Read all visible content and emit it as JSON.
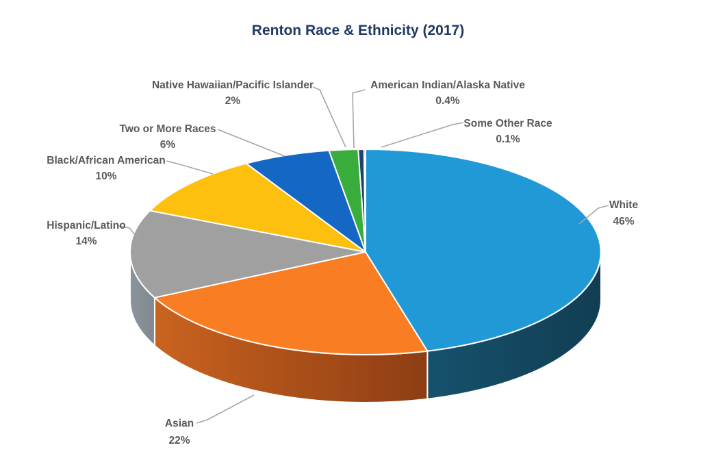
{
  "title": {
    "text": "Renton Race & Ethnicity (2017)",
    "color": "#1F3864"
  },
  "chart_data": {
    "type": "pie",
    "style": "3d-pie",
    "title": "Renton Race & Ethnicity (2017)",
    "unit": "percent",
    "legend": "none",
    "label_style": "category name + percentage with leader lines",
    "label_color": "#595959",
    "leader_color": "#A6A6A6",
    "background": "#FFFFFF",
    "slices": [
      {
        "label": "White",
        "value": 46,
        "display": "46%",
        "color": "#2199D7",
        "side_colors": [
          "#16516C",
          "#113E53"
        ]
      },
      {
        "label": "Asian",
        "value": 22,
        "display": "22%",
        "color": "#F97E23",
        "side_colors": [
          "#C9631F",
          "#8E3D14"
        ]
      },
      {
        "label": "Hispanic/Latino",
        "value": 14,
        "display": "14%",
        "color": "#A0A0A0",
        "side_colors": [
          "#8C949B",
          "#80888F"
        ]
      },
      {
        "label": "Black/African American",
        "value": 10,
        "display": "10%",
        "color": "#FDC00F",
        "side_colors": [
          "#BC8E06",
          "#A87E05"
        ]
      },
      {
        "label": "Two or More Races",
        "value": 6,
        "display": "6%",
        "color": "#1467C3",
        "side_colors": [
          "#0E4A8E",
          "#0C4076"
        ]
      },
      {
        "label": "Native Hawaiian/Pacific Islander",
        "value": 2,
        "display": "2%",
        "color": "#38AD3C",
        "side_colors": [
          "#27792A",
          "#216624"
        ]
      },
      {
        "label": "American Indian/Alaska Native",
        "value": 0.4,
        "display": "0.4%",
        "color": "#20406E",
        "side_colors": [
          "#162C4D",
          "#122442"
        ]
      },
      {
        "label": "Some Other Race",
        "value": 0.1,
        "display": "0.1%",
        "color": "#B85742",
        "side_colors": [
          "#80392B",
          "#6E3125"
        ]
      }
    ]
  }
}
